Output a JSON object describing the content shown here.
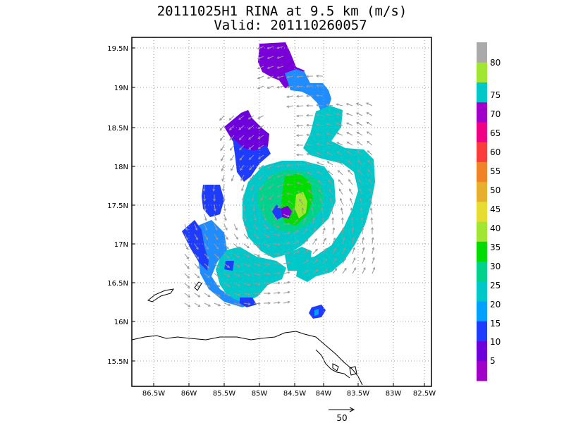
{
  "header": {
    "title": "20111025H1 RINA at 9.5 km (m/s)",
    "subtitle": "Valid: 201110260057"
  },
  "map": {
    "lon_labels": [
      "86.5W",
      "86W",
      "85.5W",
      "85W",
      "84.5W",
      "84W",
      "83.5W",
      "83W",
      "82.5W"
    ],
    "lat_labels": [
      "19.5N",
      "19N",
      "18.5N",
      "18N",
      "17.5N",
      "17N",
      "16.5N",
      "16N",
      "15.5N"
    ],
    "grid_lines": "dotted"
  },
  "legend": {
    "labels": [
      "5",
      "10",
      "15",
      "20",
      "25",
      "30",
      "35",
      "40",
      "45",
      "50",
      "55",
      "60",
      "65",
      "70",
      "75",
      "80"
    ],
    "colors": [
      "#a000c8",
      "#6e00dc",
      "#1e3cff",
      "#00a0ff",
      "#00c8c8",
      "#00d28c",
      "#00dc00",
      "#a0e632",
      "#e6dc32",
      "#e6af2d",
      "#f08228",
      "#fa3c3c",
      "#f00082",
      "#a000c8",
      "#00c8c8",
      "#a0e632",
      "#aaaaaa"
    ]
  },
  "reference_vector": {
    "label": "50"
  },
  "colors": {
    "vector": "#999999",
    "coast": "#000000"
  }
}
